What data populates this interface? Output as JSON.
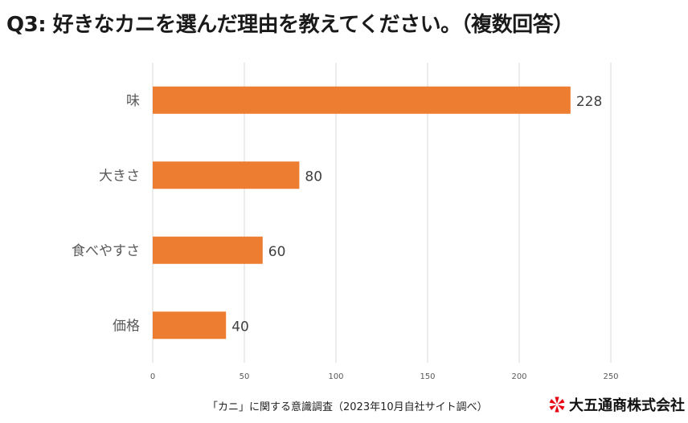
{
  "chart_data": {
    "type": "bar",
    "orientation": "horizontal",
    "title": "Q3: 好きなカニを選んだ理由を教えてください。（複数回答）",
    "categories": [
      "味",
      "大きさ",
      "食べやすさ",
      "価格"
    ],
    "values": [
      228,
      80,
      60,
      40
    ],
    "data_labels": [
      "228",
      "80",
      "60",
      "40"
    ],
    "xlim": [
      0,
      250
    ],
    "xticks": [
      0,
      50,
      100,
      150,
      200,
      250
    ],
    "xtick_labels": [
      "0",
      "50",
      "100",
      "150",
      "200",
      "250"
    ],
    "grid": true,
    "bar_color": "#ED7D31",
    "xlabel": "",
    "ylabel": ""
  },
  "footer": {
    "source": "「カニ」に関する意識調査（2023年10月自社サイト調べ）",
    "brand": "大五通商株式会社",
    "brand_logo_color": "#E60012"
  }
}
